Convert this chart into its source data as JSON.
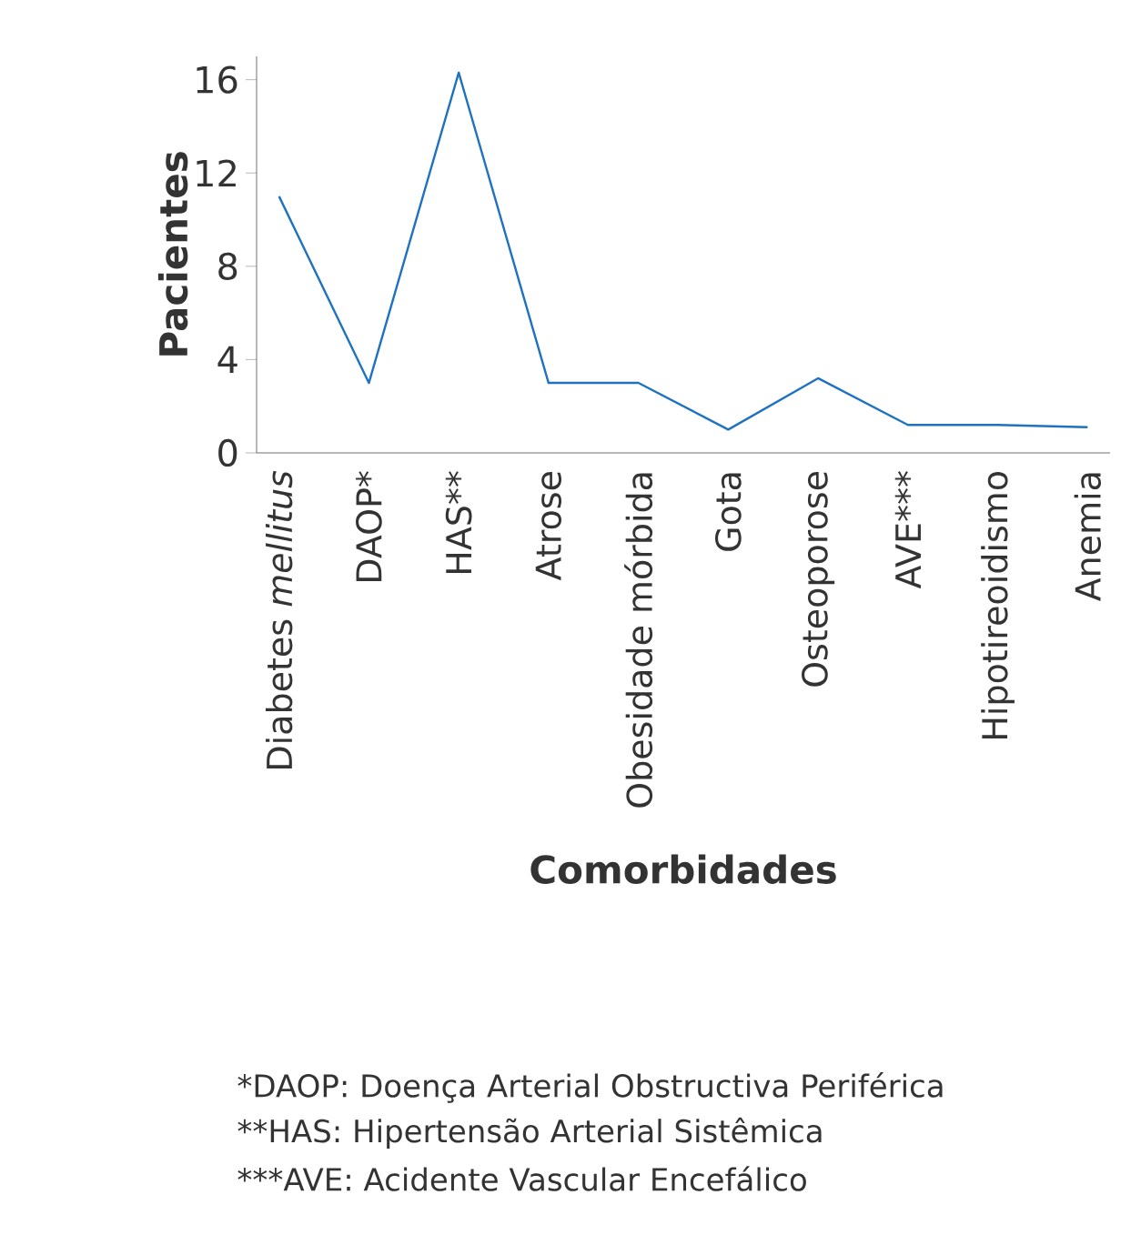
{
  "chart_data": {
    "type": "line",
    "categories": [
      "Diabetes *mellitus*",
      "DAOP*",
      "HAS**",
      "Atrose",
      "Obesidade mórbida",
      "Gota",
      "Osteoporose",
      "AVE***",
      "Hipotireoidismo",
      "Anemia"
    ],
    "values": [
      11,
      3,
      16.3,
      3,
      3,
      1,
      3.2,
      1.2,
      1.2,
      1.1
    ],
    "color": "#1f72c0",
    "xlabel": "Comorbidades",
    "ylabel": "Pacientes",
    "ylim": [
      0,
      17
    ],
    "yticks": [
      0,
      4,
      8,
      12,
      16
    ],
    "annotations": [
      "*DAOP: Doença Arterial Obstructiva Periférica",
      "**HAS: Hipertensão Arterial Sistêmica",
      "***AVE: Acidente Vascular Encefálico"
    ]
  }
}
